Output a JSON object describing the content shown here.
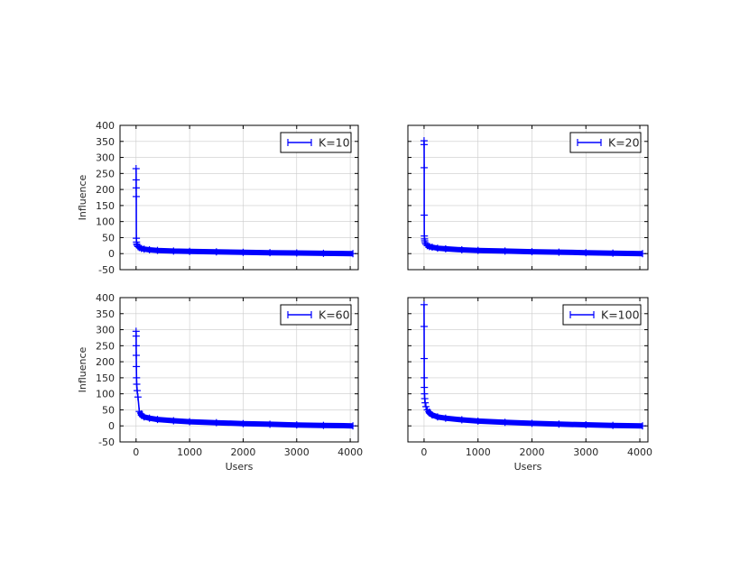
{
  "chart_data": [
    {
      "type": "line",
      "legend": "K=10",
      "legend_position": "top-right",
      "grid": true,
      "xlim": [
        -300,
        4150
      ],
      "ylim": [
        -50,
        400
      ],
      "xticks": [
        0,
        1000,
        2000,
        3000,
        4000
      ],
      "yticks": [
        -50,
        0,
        50,
        100,
        150,
        200,
        250,
        300,
        350,
        400
      ],
      "xlabel": "",
      "ylabel": "Influence",
      "x": [
        0,
        1,
        2,
        3,
        5,
        8,
        12,
        20,
        35,
        60,
        100,
        150,
        250,
        400,
        700,
        1000,
        1500,
        2000,
        2500,
        3000,
        3500,
        4050
      ],
      "y": [
        265,
        230,
        205,
        178,
        48,
        36,
        30,
        26,
        22,
        19,
        16,
        14,
        12,
        10,
        8,
        7,
        5.5,
        4,
        3,
        2,
        1,
        0
      ]
    },
    {
      "type": "line",
      "legend": "K=20",
      "legend_position": "top-right",
      "grid": true,
      "xlim": [
        -300,
        4150
      ],
      "ylim": [
        -50,
        400
      ],
      "xticks": [
        0,
        1000,
        2000,
        3000,
        4000
      ],
      "yticks": [
        -50,
        0,
        50,
        100,
        150,
        200,
        250,
        300,
        350,
        400
      ],
      "xlabel": "",
      "ylabel": "",
      "x": [
        0,
        1,
        2,
        3,
        5,
        8,
        12,
        20,
        35,
        60,
        100,
        150,
        250,
        400,
        700,
        1000,
        1500,
        2000,
        2500,
        3000,
        3500,
        4050
      ],
      "y": [
        352,
        340,
        268,
        120,
        55,
        46,
        40,
        34,
        29,
        25,
        22,
        20,
        17,
        15,
        12,
        10,
        8,
        6,
        4.5,
        3,
        1.5,
        0
      ]
    },
    {
      "type": "line",
      "legend": "K=60",
      "legend_position": "top-right",
      "grid": true,
      "xlim": [
        -300,
        4150
      ],
      "ylim": [
        -50,
        400
      ],
      "xticks": [
        0,
        1000,
        2000,
        3000,
        4000
      ],
      "yticks": [
        -50,
        0,
        50,
        100,
        150,
        200,
        250,
        300,
        350,
        400
      ],
      "xlabel": "Users",
      "ylabel": "Influence",
      "x": [
        0,
        1,
        2,
        3,
        5,
        8,
        12,
        20,
        35,
        60,
        100,
        150,
        250,
        400,
        700,
        1000,
        1500,
        2000,
        2500,
        3000,
        3500,
        4050
      ],
      "y": [
        295,
        280,
        250,
        220,
        185,
        150,
        130,
        110,
        90,
        45,
        33,
        28,
        24,
        20,
        16,
        13,
        10,
        7,
        5,
        3,
        1.5,
        0
      ]
    },
    {
      "type": "line",
      "legend": "K=100",
      "legend_position": "top-right",
      "grid": true,
      "xlim": [
        -300,
        4150
      ],
      "ylim": [
        -50,
        400
      ],
      "xticks": [
        0,
        1000,
        2000,
        3000,
        4000
      ],
      "yticks": [
        -50,
        0,
        50,
        100,
        150,
        200,
        250,
        300,
        350,
        400
      ],
      "xlabel": "Users",
      "ylabel": "",
      "x": [
        0,
        1,
        2,
        3,
        5,
        8,
        12,
        20,
        35,
        60,
        100,
        150,
        250,
        400,
        700,
        1000,
        1500,
        2000,
        2500,
        3000,
        3500,
        4050
      ],
      "y": [
        378,
        310,
        210,
        150,
        120,
        100,
        85,
        72,
        60,
        50,
        40,
        34,
        28,
        24,
        19,
        15,
        11,
        8,
        5.5,
        3.5,
        1.5,
        0
      ]
    }
  ],
  "colors": {
    "line": "#0000ff",
    "grid": "#cbcbcb",
    "axes": "#000000"
  }
}
